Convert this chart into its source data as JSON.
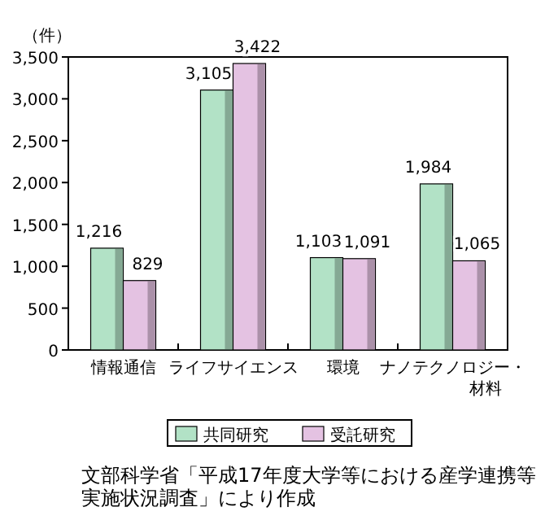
{
  "chart_data": {
    "type": "bar",
    "ylabel": "（件）",
    "categories": [
      "情報通信",
      "ライフサイエンス",
      "環境",
      "ナノテクノロジー・材料"
    ],
    "series": [
      {
        "name": "共同研究",
        "color": "#b2e2c6",
        "values": [
          1216,
          3105,
          1103,
          1984
        ],
        "value_labels": [
          "1,216",
          "3,105",
          "1,103",
          "1,984"
        ]
      },
      {
        "name": "受託研究",
        "color": "#e4c2e2",
        "values": [
          829,
          3422,
          1091,
          1065
        ],
        "value_labels": [
          "829",
          "3,422",
          "1,091",
          "1,065"
        ]
      }
    ],
    "ylim": [
      0,
      3500
    ],
    "yticks": [
      {
        "value": 0,
        "label": "0"
      },
      {
        "value": 500,
        "label": "500"
      },
      {
        "value": 1000,
        "label": "1,000"
      },
      {
        "value": 1500,
        "label": "1,500"
      },
      {
        "value": 2000,
        "label": "2,000"
      },
      {
        "value": 2500,
        "label": "2,500"
      },
      {
        "value": 3000,
        "label": "3,000"
      },
      {
        "value": 3500,
        "label": "3,500"
      }
    ],
    "legend": "bottom",
    "grid": false,
    "annotations": [
      "文部科学省「平成17年度大学等における産学連携等実施状況調査」により作成"
    ]
  }
}
